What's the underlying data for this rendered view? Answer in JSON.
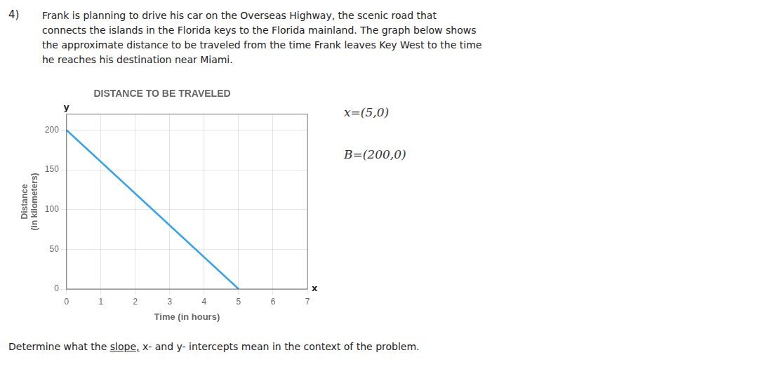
{
  "chart_data": {
    "type": "line",
    "title": "DISTANCE TO BE TRAVELED",
    "xlabel": "Time (in hours)",
    "ylabel": [
      "Distance",
      "(in kilometers)"
    ],
    "x": [
      0,
      5
    ],
    "values": [
      200,
      0
    ],
    "xlim": [
      0,
      7
    ],
    "ylim": [
      0,
      220
    ],
    "xticks": [
      0,
      1,
      2,
      3,
      4,
      5,
      6,
      7
    ],
    "yticks": [
      0,
      50,
      100,
      150,
      200
    ],
    "grid": true,
    "axis_marks": {
      "y": "y",
      "x": "x"
    },
    "annotations": [
      "x=(5,0)",
      "B=(200,0)"
    ],
    "problem_number": "4)",
    "paragraph": [
      "Frank is planning to drive his car on the Overseas Highway, the scenic road that",
      "connects the islands in the Florida keys to the Florida mainland. The graph below shows",
      "the approximate distance to be traveled from the time Frank leaves Key West to the time",
      "he reaches his destination near Miami."
    ],
    "footer": [
      "Determine what the",
      "slope,",
      "x- and y- intercepts mean in the context of the problem."
    ]
  }
}
